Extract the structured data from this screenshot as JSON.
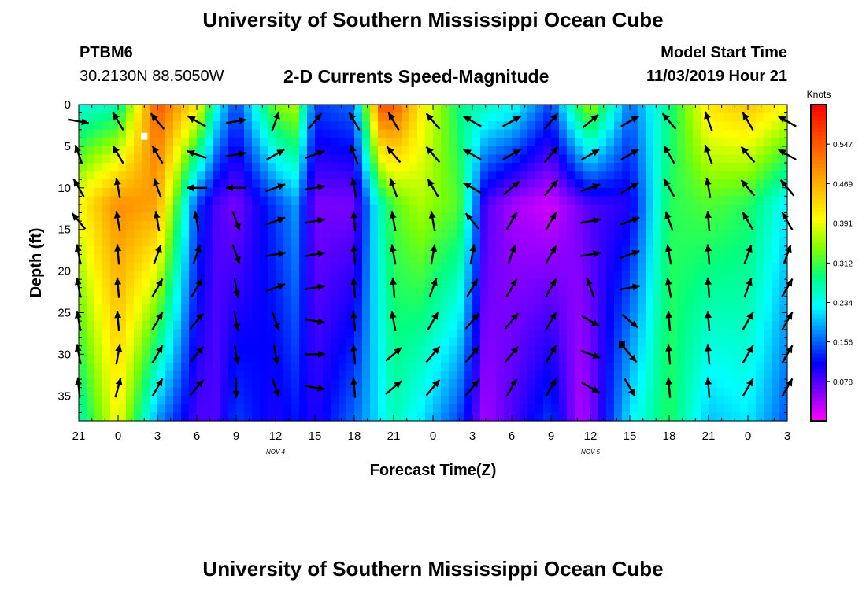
{
  "header": {
    "title": "University of Southern Mississippi Ocean Cube",
    "station_id": "PTBM6",
    "station_coords": "30.2130N 88.5050W",
    "product_title": "2-D Currents Speed-Magnitude",
    "model_start_label": "Model Start Time",
    "model_start_value": "11/03/2019 Hour 21"
  },
  "footer": {
    "title": "University of Southern Mississippi Ocean Cube"
  },
  "chart_data": {
    "type": "heatmap",
    "title": "2-D Currents Speed-Magnitude",
    "xlabel": "Forecast Time(Z)",
    "ylabel": "Depth (ft)",
    "x_ticks": [
      "21",
      "0",
      "3",
      "6",
      "9",
      "12",
      "15",
      "18",
      "21",
      "0",
      "3",
      "6",
      "9",
      "12",
      "15",
      "18",
      "21",
      "0",
      "3"
    ],
    "x_range_hours": [
      0,
      54
    ],
    "x_day_labels": [
      {
        "label": "NOV 4",
        "hour": 15
      },
      {
        "label": "NOV 5",
        "hour": 39
      }
    ],
    "y_ticks": [
      0,
      5,
      10,
      15,
      20,
      25,
      30,
      35
    ],
    "ylim": [
      0,
      38
    ],
    "y_inverted": true,
    "colorbar": {
      "title": "Knots",
      "ticks": [
        "0.078",
        "0.156",
        "0.234",
        "0.312",
        "0.391",
        "0.469",
        "0.547"
      ],
      "range": [
        0,
        0.625
      ],
      "colors": [
        "#ff00ff",
        "#8000ff",
        "#0000ff",
        "#0080ff",
        "#00ffff",
        "#00ff80",
        "#80ff00",
        "#ffff00",
        "#ffc000",
        "#ff8000",
        "#ff4000",
        "#ff0000"
      ]
    },
    "speed_profile_hours": [
      0,
      3,
      6,
      9,
      10.5,
      12,
      15,
      16.5,
      18,
      21,
      23,
      24,
      26,
      29,
      31,
      33,
      36,
      38,
      39,
      42,
      45,
      48,
      51,
      54
    ],
    "surface_speed": [
      0.24,
      0.26,
      0.55,
      0.42,
      0.24,
      0.14,
      0.34,
      0.36,
      0.14,
      0.16,
      0.55,
      0.55,
      0.42,
      0.28,
      0.26,
      0.24,
      0.14,
      0.3,
      0.36,
      0.16,
      0.28,
      0.42,
      0.45,
      0.4
    ],
    "deep_speed": [
      0.26,
      0.4,
      0.18,
      0.08,
      0.08,
      0.14,
      0.1,
      0.12,
      0.1,
      0.16,
      0.22,
      0.26,
      0.22,
      0.14,
      0.04,
      0.08,
      0.14,
      0.04,
      0.05,
      0.22,
      0.3,
      0.2,
      0.22,
      0.15
    ],
    "mid_speed": [
      0.4,
      0.5,
      0.48,
      0.14,
      0.08,
      0.06,
      0.14,
      0.18,
      0.06,
      0.06,
      0.26,
      0.32,
      0.36,
      0.32,
      0.08,
      0.04,
      0.02,
      0.06,
      0.08,
      0.1,
      0.3,
      0.32,
      0.3,
      0.22
    ],
    "arrow_hours": [
      0,
      3,
      6,
      9,
      12,
      15,
      18,
      21,
      24,
      27,
      30,
      33,
      36,
      39,
      42,
      45,
      48,
      51,
      54
    ],
    "arrow_depths_ft": [
      2,
      6,
      10,
      14,
      18,
      22,
      26,
      30,
      34
    ],
    "arrow_dir_deg": [
      [
        100,
        340,
        330,
        320,
        350,
        350,
        350,
        350,
        355
      ],
      [
        330,
        330,
        350,
        350,
        355,
        355,
        355,
        10,
        15
      ],
      [
        320,
        330,
        340,
        350,
        20,
        30,
        30,
        30,
        30
      ],
      [
        300,
        290,
        270,
        350,
        20,
        30,
        40,
        40,
        40
      ],
      [
        80,
        80,
        270,
        160,
        160,
        170,
        170,
        170,
        180
      ],
      [
        20,
        60,
        70,
        70,
        80,
        70,
        160,
        170,
        160
      ],
      [
        40,
        70,
        80,
        80,
        80,
        80,
        100,
        90,
        100
      ],
      [
        330,
        340,
        350,
        355,
        355,
        355,
        355,
        355,
        355
      ],
      [
        330,
        320,
        340,
        350,
        350,
        355,
        350,
        50,
        50
      ],
      [
        320,
        320,
        330,
        350,
        10,
        20,
        30,
        40,
        40
      ],
      [
        300,
        300,
        300,
        320,
        10,
        30,
        40,
        40,
        40
      ],
      [
        60,
        60,
        50,
        30,
        20,
        30,
        40,
        40,
        30
      ],
      [
        40,
        40,
        40,
        30,
        30,
        30,
        30,
        30,
        30
      ],
      [
        50,
        60,
        70,
        80,
        80,
        340,
        120,
        110,
        120
      ],
      [
        60,
        60,
        60,
        70,
        70,
        80,
        130,
        140,
        150
      ],
      [
        320,
        330,
        330,
        340,
        350,
        350,
        355,
        355,
        355
      ],
      [
        340,
        340,
        350,
        355,
        355,
        355,
        355,
        355,
        355
      ],
      [
        330,
        320,
        320,
        330,
        20,
        20,
        30,
        30,
        30
      ],
      [
        300,
        300,
        320,
        330,
        20,
        30,
        30,
        30,
        30
      ]
    ],
    "markers": [
      {
        "label": "",
        "hour": 5,
        "depth": 3.8,
        "color": "#ffffff"
      },
      {
        "label": "",
        "hour": 41.4,
        "depth": 28.8,
        "color": "#000000"
      }
    ]
  }
}
